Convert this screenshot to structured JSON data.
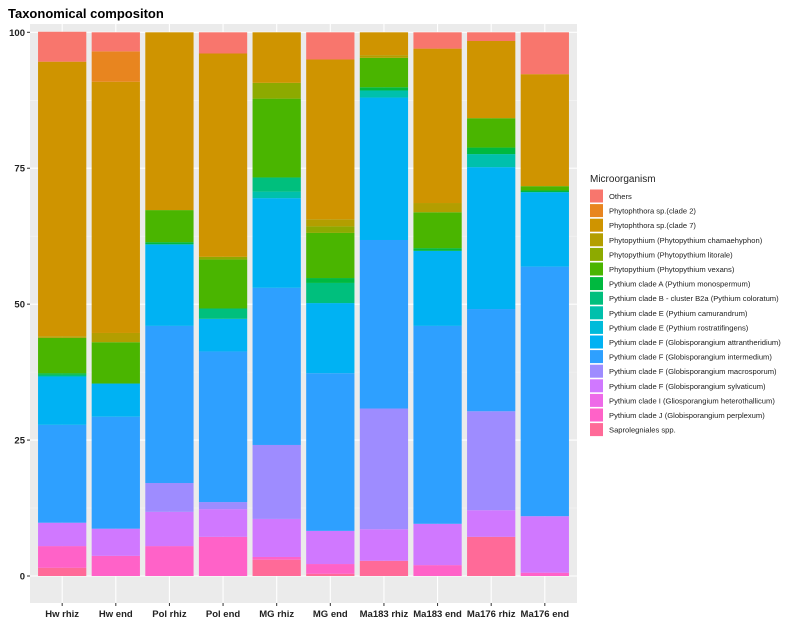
{
  "chart_data": {
    "type": "bar",
    "stacked": true,
    "title": "Taxonomical compositon",
    "xlabel": "",
    "ylabel": "",
    "ylim": [
      0,
      100
    ],
    "yticks": [
      0,
      25,
      50,
      75,
      100
    ],
    "grid": true,
    "legend_title": "Microorganism",
    "legend_position": "right",
    "categories": [
      "Hw rhiz",
      "Hw end",
      "Pol rhiz",
      "Pol end",
      "MG rhiz",
      "MG end",
      "Ma183 rhiz",
      "Ma183 end",
      "Ma176 rhiz",
      "Ma176 end"
    ],
    "series": [
      {
        "name": "Others",
        "color": "#F8766D",
        "values": [
          5.5,
          3.5,
          0,
          3.9,
          0,
          5,
          0,
          3,
          1.6,
          7.7
        ]
      },
      {
        "name": "Phytophthora  sp.(clade 2)",
        "color": "#E8851F",
        "values": [
          0,
          5.6,
          0,
          0,
          0,
          0,
          0,
          0,
          0,
          0
        ]
      },
      {
        "name": "Phytophthora  sp.(clade 7)",
        "color": "#CF9400",
        "values": [
          50.5,
          46.2,
          32.7,
          37.4,
          9.3,
          29.4,
          4.2,
          28.4,
          14.2,
          20.6
        ]
      },
      {
        "name": "Phytopythium (Phytopythium chamaehyphon)",
        "color": "#B39E00",
        "values": [
          0.3,
          1.7,
          0,
          0,
          0,
          1.3,
          0.5,
          1.7,
          0,
          0
        ]
      },
      {
        "name": "Phytopythium (Phytopythium litorale)",
        "color": "#8DAA00",
        "values": [
          0,
          0,
          0,
          0.5,
          2.9,
          1.2,
          0,
          0,
          0,
          0
        ]
      },
      {
        "name": "Phytopythium (Phytopythium vexans)",
        "color": "#4AB500",
        "values": [
          6.5,
          7.6,
          5.9,
          9,
          14.5,
          8.3,
          5.4,
          6.6,
          5.4,
          0.8
        ]
      },
      {
        "name": "Pythium clade A (Pythium monospermum)",
        "color": "#00B93F",
        "values": [
          0.3,
          0,
          0.4,
          0,
          0,
          0.9,
          0.6,
          0.5,
          1.2,
          0.3
        ]
      },
      {
        "name": "Pythium clade B - cluster B2a (Pythium coloratum)",
        "color": "#00BF7D",
        "values": [
          0.3,
          0,
          0,
          1.9,
          2.6,
          3.7,
          0,
          0,
          0,
          0
        ]
      },
      {
        "name": "Pythium clade E (Pythium camurandrum)",
        "color": "#00C0AC",
        "values": [
          0,
          0,
          0,
          0,
          1.2,
          0,
          1.3,
          0,
          2.4,
          0
        ]
      },
      {
        "name": "Pythium clade E (Pythium rostratifingens)",
        "color": "#00BBDA",
        "values": [
          0,
          0,
          0,
          0,
          0,
          0,
          0,
          0,
          0,
          0
        ]
      },
      {
        "name": "Pythium clade F (Globisporangium attrantheridium)",
        "color": "#00B2F3",
        "values": [
          8.9,
          6.1,
          15,
          6,
          16.5,
          12.9,
          26.2,
          13.8,
          26.1,
          13.7
        ]
      },
      {
        "name": "Pythium clade F (Globisporangium intermedium)",
        "color": "#2EA0FF",
        "values": [
          18,
          20.6,
          28.9,
          27.7,
          28.9,
          29,
          31,
          36.4,
          18.8,
          45.9
        ]
      },
      {
        "name": "Pythium clade F (Globisporangium macrosporum)",
        "color": "#9E8CFF",
        "values": [
          0,
          0,
          5.3,
          1.3,
          13.6,
          0,
          22.2,
          0,
          18.2,
          0
        ]
      },
      {
        "name": "Pythium clade F (Globisporangium sylvaticum)",
        "color": "#D078FF",
        "values": [
          4.3,
          5,
          6.3,
          5.1,
          7,
          6.1,
          5.8,
          7.6,
          4.9,
          10.4
        ]
      },
      {
        "name": "Pythium clade I (Gliosporangium heterothallicum)",
        "color": "#EE6AE8",
        "values": [
          0,
          0,
          0,
          0,
          0,
          0,
          0,
          0,
          0,
          0
        ]
      },
      {
        "name": "Pythium clade J (Globisporangium perplexum)",
        "color": "#FF62C8",
        "values": [
          4,
          3.7,
          5.5,
          7.2,
          0.5,
          1.8,
          0,
          2,
          0,
          0.6
        ]
      },
      {
        "name": "Saprolegniales spp.",
        "color": "#FF6A98",
        "values": [
          1.5,
          0,
          0,
          0,
          3,
          0.4,
          2.8,
          0,
          7.2,
          0
        ]
      }
    ]
  }
}
